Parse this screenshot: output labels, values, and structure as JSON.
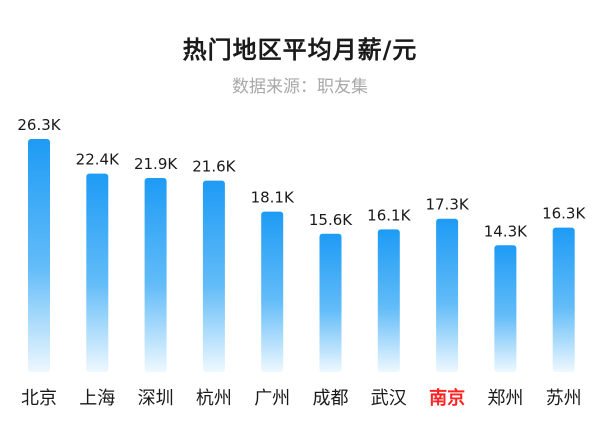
{
  "chart_data": {
    "type": "bar",
    "title": "热门地区平均月薪/元",
    "subtitle": "数据来源：职友集",
    "categories": [
      "北京",
      "上海",
      "深圳",
      "杭州",
      "广州",
      "成都",
      "武汉",
      "南京",
      "郑州",
      "苏州"
    ],
    "values": [
      26.3,
      22.4,
      21.9,
      21.6,
      18.1,
      15.6,
      16.1,
      17.3,
      14.3,
      16.3
    ],
    "value_labels": [
      "26.3K",
      "22.4K",
      "21.9K",
      "21.6K",
      "18.1K",
      "15.6K",
      "16.1K",
      "17.3K",
      "14.3K",
      "16.3K"
    ],
    "highlight_category": "南京",
    "xlabel": "",
    "ylabel": "",
    "ylim": [
      0,
      26.3
    ],
    "grid": false,
    "legend": false,
    "colors": {
      "bar_top": "#1e9bf5",
      "bar_bottom": "#e8f5fe",
      "label": "#1a1a1a",
      "highlight": "#ff2424"
    }
  }
}
